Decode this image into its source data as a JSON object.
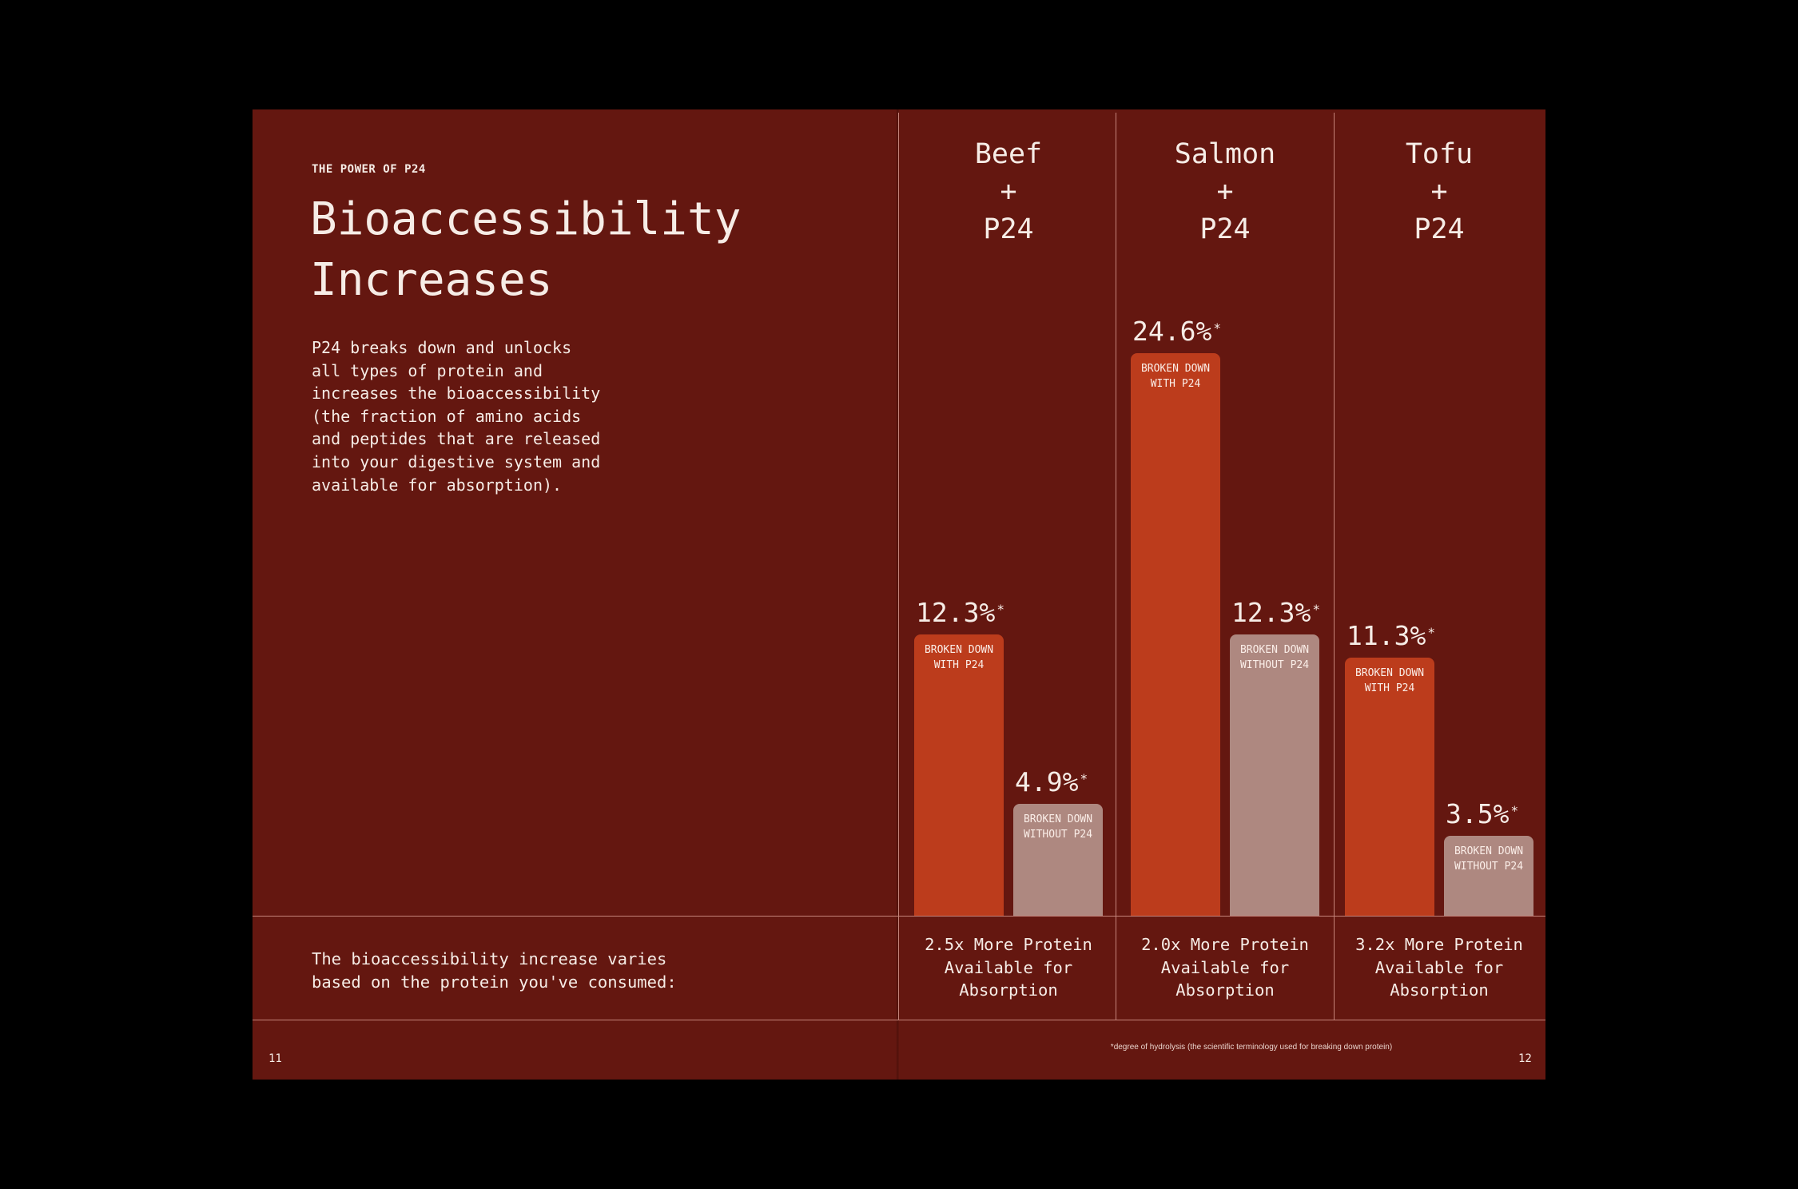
{
  "left_page": {
    "eyebrow": "THE POWER OF P24",
    "title_line1": "Bioaccessibility",
    "title_line2": "Increases",
    "body_lines": [
      "P24 breaks down and unlocks",
      "all types of protein and",
      "increases the bioaccessibility",
      "(the fraction of amino acids",
      "and peptides that are released",
      "into your digestive system and",
      "available for absorption)."
    ],
    "varies_lines": [
      "The bioaccessibility increase varies",
      "based on the protein you've consumed:"
    ],
    "page_number": "11"
  },
  "right_page": {
    "footnote": "*degree of hydrolysis (the scientific terminology used for breaking down protein)",
    "page_number": "12"
  },
  "chart_data": {
    "type": "bar",
    "categories": [
      "Beef",
      "Salmon",
      "Tofu"
    ],
    "category_headers": [
      [
        "Beef",
        "+",
        "P24"
      ],
      [
        "Salmon",
        "+",
        "P24"
      ],
      [
        "Tofu",
        "+",
        "P24"
      ]
    ],
    "series": [
      {
        "name": "BROKEN DOWN WITH P24",
        "label_lines": [
          "BROKEN DOWN",
          "WITH P24"
        ],
        "values": [
          12.3,
          24.6,
          11.3
        ],
        "color": "#bc3c1c"
      },
      {
        "name": "BROKEN DOWN WITHOUT P24",
        "label_lines": [
          "BROKEN DOWN",
          "WITHOUT P24"
        ],
        "values": [
          4.9,
          12.3,
          3.5
        ],
        "color": "#ae8880"
      }
    ],
    "value_labels": [
      [
        "12.3%",
        "24.6%",
        "11.3%"
      ],
      [
        "4.9%",
        "12.3%",
        "3.5%"
      ]
    ],
    "value_marker": "*",
    "footers": [
      [
        "2.5x More Protein",
        "Available for",
        "Absorption"
      ],
      [
        "2.0x More Protein",
        "Available for",
        "Absorption"
      ],
      [
        "3.2x More Protein",
        "Available for",
        "Absorption"
      ]
    ],
    "ylim": [
      0,
      24.6
    ],
    "grid": false,
    "legend": "none"
  }
}
